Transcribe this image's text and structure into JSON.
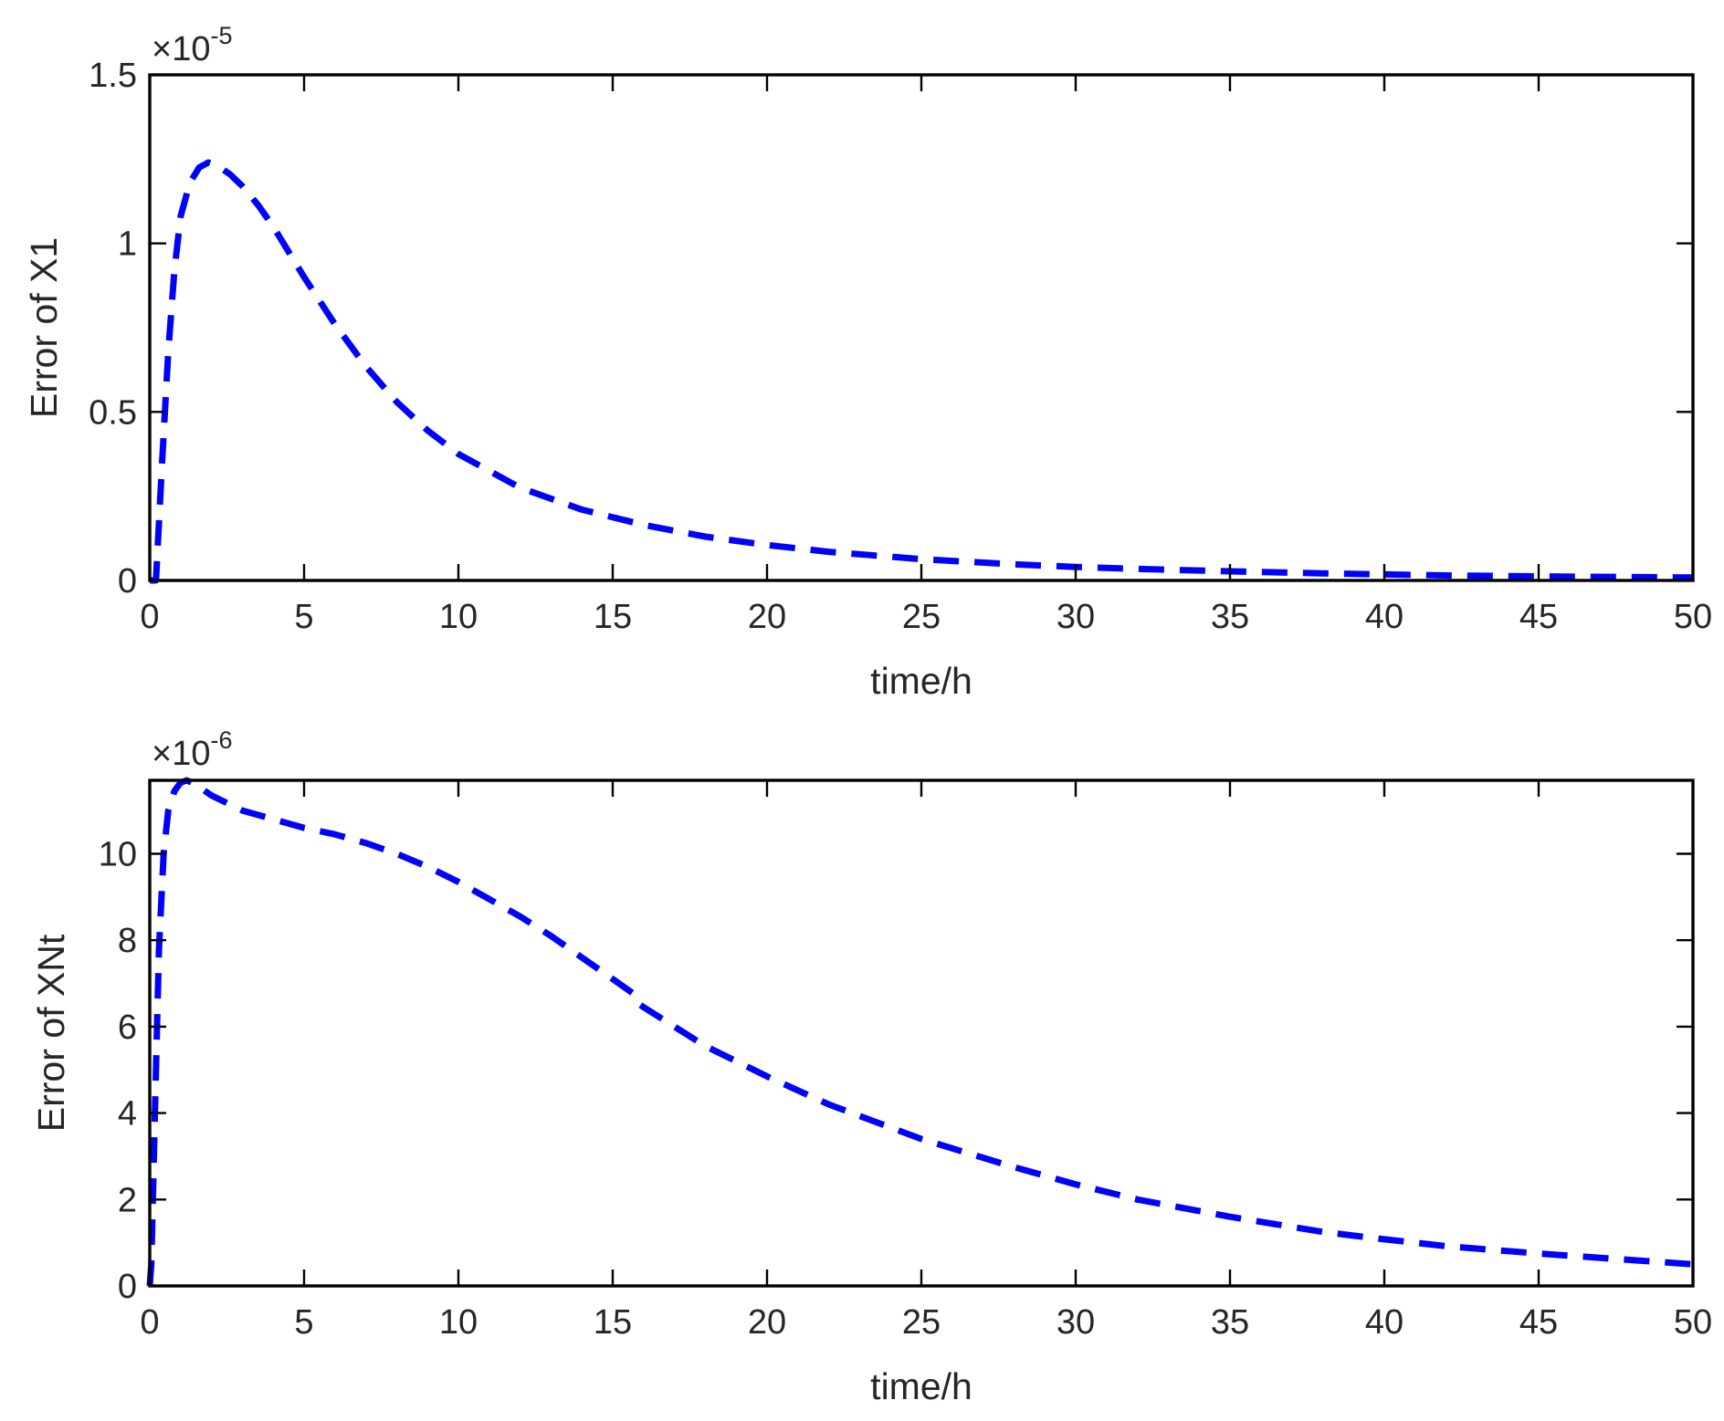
{
  "colors": {
    "line": "#0000ff",
    "axes": "#000000",
    "text": "#262626"
  },
  "chart_data": [
    {
      "type": "line",
      "xlabel": "time/h",
      "ylabel": "Error of X1",
      "xlim": [
        0,
        50
      ],
      "ylim": [
        0,
        1.5e-05
      ],
      "y_multiplier": "×10",
      "y_exponent": "-5",
      "x_ticks": [
        0,
        5,
        10,
        15,
        20,
        25,
        30,
        35,
        40,
        45,
        50
      ],
      "x_tick_labels": [
        "0",
        "5",
        "10",
        "15",
        "20",
        "25",
        "30",
        "35",
        "40",
        "45",
        "50"
      ],
      "y_ticks": [
        0,
        5e-06,
        1e-05,
        1.5e-05
      ],
      "y_tick_labels": [
        "0",
        "0.5",
        "1",
        "1.5"
      ],
      "grid": false,
      "line_style": "dashed",
      "series": [
        {
          "x": [
            0,
            0.2,
            0.4,
            0.6,
            0.8,
            1.0,
            1.3,
            1.6,
            1.9,
            2.2,
            2.6,
            3.0,
            3.5,
            4,
            5,
            6,
            7,
            8,
            9,
            10,
            12,
            14,
            16,
            18,
            20,
            22,
            25,
            28,
            30,
            32,
            35,
            38,
            40,
            42,
            45,
            48,
            50
          ],
          "y": [
            0,
            0.0,
            3.5e-06,
            6.8e-06,
            9.2e-06,
            1.08e-05,
            1.18e-05,
            1.225e-05,
            1.24e-05,
            1.23e-05,
            1.205e-05,
            1.17e-05,
            1.115e-05,
            1.05e-05,
            9e-06,
            7.6e-06,
            6.35e-06,
            5.3e-06,
            4.45e-06,
            3.75e-06,
            2.75e-06,
            2.1e-06,
            1.65e-06,
            1.3e-06,
            1.05e-06,
            8.5e-07,
            6.3e-07,
            4.8e-07,
            4e-07,
            3.4e-07,
            2.7e-07,
            2.1e-07,
            1.8e-07,
            1.5e-07,
            1.2e-07,
            1e-07,
            9e-08
          ]
        }
      ]
    },
    {
      "type": "line",
      "xlabel": "time/h",
      "ylabel": "Error of XNt",
      "xlim": [
        0,
        50
      ],
      "ylim": [
        0,
        1.17e-05
      ],
      "y_multiplier": "×10",
      "y_exponent": "-6",
      "x_ticks": [
        0,
        5,
        10,
        15,
        20,
        25,
        30,
        35,
        40,
        45,
        50
      ],
      "x_tick_labels": [
        "0",
        "5",
        "10",
        "15",
        "20",
        "25",
        "30",
        "35",
        "40",
        "45",
        "50"
      ],
      "y_ticks": [
        0,
        2e-06,
        4e-06,
        6e-06,
        8e-06,
        1e-05
      ],
      "y_tick_labels": [
        "0",
        "2",
        "4",
        "6",
        "8",
        "10"
      ],
      "grid": false,
      "line_style": "dashed",
      "series": [
        {
          "x": [
            0,
            0.05,
            0.1,
            0.2,
            0.3,
            0.45,
            0.6,
            0.8,
            1.0,
            1.2,
            1.5,
            2,
            3,
            4,
            5,
            6,
            7,
            8,
            9,
            10,
            11,
            12,
            13,
            14,
            15,
            15.8,
            15.9,
            16,
            17,
            18,
            20,
            22,
            25,
            28,
            30,
            32,
            35,
            38,
            40,
            42,
            45,
            48,
            50
          ],
          "y": [
            0,
            5e-07,
            2e-06,
            5e-06,
            7.8e-06,
            1e-05,
            1.1e-05,
            1.145e-05,
            1.165e-05,
            1.17e-05,
            1.16e-05,
            1.135e-05,
            1.1e-05,
            1.08e-05,
            1.06e-05,
            1.045e-05,
            1.025e-05,
            1e-05,
            9.7e-06,
            9.35e-06,
            8.95e-06,
            8.55e-06,
            8.1e-06,
            7.6e-06,
            7.1e-06,
            6.7e-06,
            6.5e-06,
            6.45e-06,
            6e-06,
            5.55e-06,
            4.85e-06,
            4.2e-06,
            3.4e-06,
            2.75e-06,
            2.35e-06,
            2e-06,
            1.6e-06,
            1.25e-06,
            1.08e-06,
            9.2e-07,
            7.5e-07,
            6e-07,
            5e-07
          ]
        }
      ]
    }
  ]
}
